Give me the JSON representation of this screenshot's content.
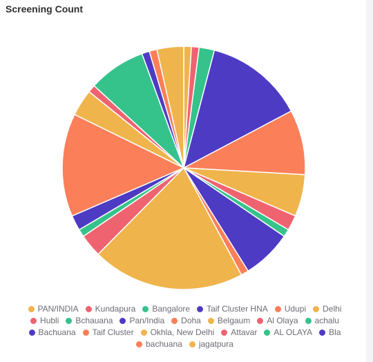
{
  "title": "Screening Count",
  "colors": {
    "yellow": "#f0b44d",
    "red": "#ef6370",
    "green": "#35c38b",
    "purple": "#4e3bc4",
    "orange": "#fb7f59"
  },
  "chart_data": {
    "type": "pie",
    "title": "Screening Count",
    "legend_position": "bottom",
    "slices": [
      {
        "label": "PAN/INDIA",
        "value": 1.0,
        "color": "#f0b44d"
      },
      {
        "label": "Kundapura",
        "value": 1.0,
        "color": "#ef6370"
      },
      {
        "label": "Bangalore",
        "value": 2.0,
        "color": "#35c38b"
      },
      {
        "label": "Taif Cluster HNA",
        "value": 13.0,
        "color": "#4e3bc4"
      },
      {
        "label": "Udupi",
        "value": 8.5,
        "color": "#fb7f59"
      },
      {
        "label": "Delhi",
        "value": 5.5,
        "color": "#f0b44d"
      },
      {
        "label": "Hubli",
        "value": 2.0,
        "color": "#ef6370"
      },
      {
        "label": "Bchauana",
        "value": 1.0,
        "color": "#35c38b"
      },
      {
        "label": "Pan/India",
        "value": 6.5,
        "color": "#4e3bc4"
      },
      {
        "label": "Doha",
        "value": 1.0,
        "color": "#fb7f59"
      },
      {
        "label": "Belgaum",
        "value": 20.0,
        "color": "#f0b44d"
      },
      {
        "label": "Al Olaya",
        "value": 3.0,
        "color": "#ef6370"
      },
      {
        "label": "achalu",
        "value": 1.0,
        "color": "#35c38b"
      },
      {
        "label": "Bachuana",
        "value": 2.0,
        "color": "#4e3bc4"
      },
      {
        "label": "Taif Cluster",
        "value": 13.5,
        "color": "#fb7f59"
      },
      {
        "label": "Okhla, New Delhi",
        "value": 3.5,
        "color": "#f0b44d"
      },
      {
        "label": "Attavar",
        "value": 1.0,
        "color": "#ef6370"
      },
      {
        "label": "AL OLAYA",
        "value": 7.5,
        "color": "#35c38b"
      },
      {
        "label": "Bla",
        "value": 1.0,
        "color": "#4e3bc4"
      },
      {
        "label": "bachuana",
        "value": 1.0,
        "color": "#fb7f59"
      },
      {
        "label": "jagatpura",
        "value": 3.5,
        "color": "#f0b44d"
      }
    ]
  }
}
